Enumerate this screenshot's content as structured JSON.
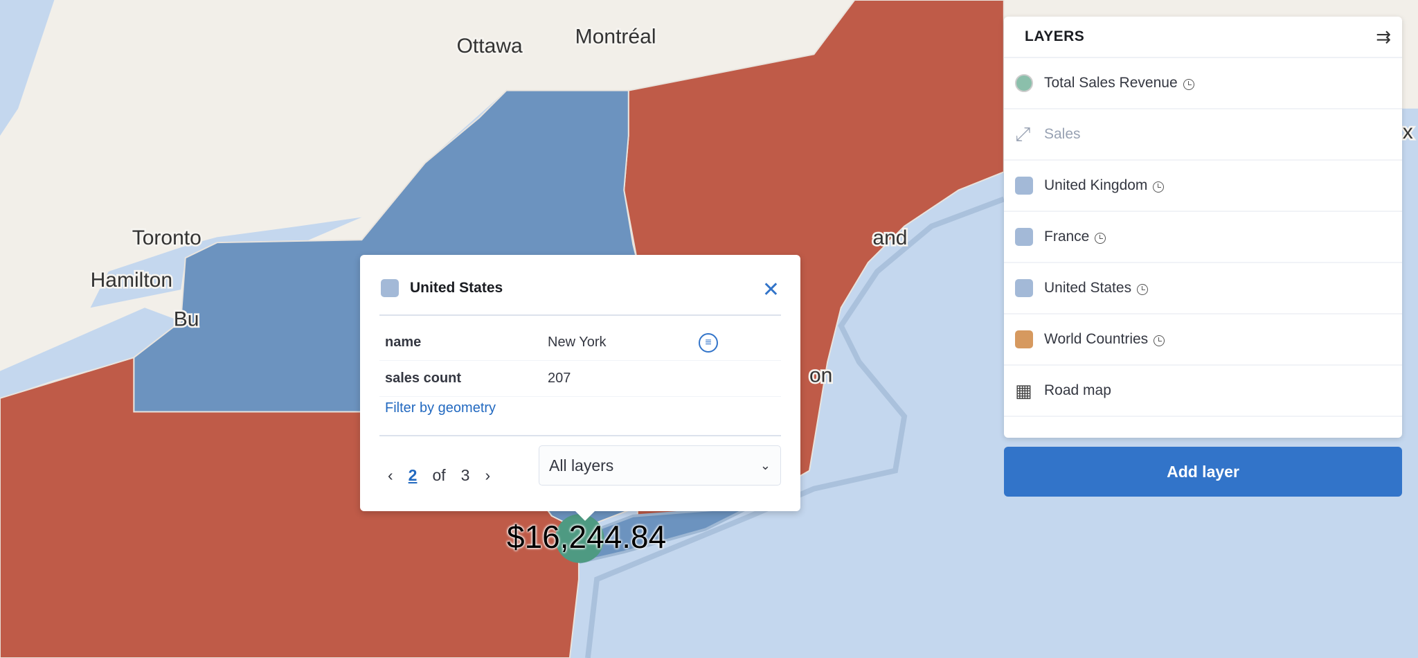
{
  "map": {
    "colors": {
      "land": "#f2efe9",
      "water": "#c4d7ee",
      "new_york": "#6c93bf",
      "other_states": "#bf5b48",
      "point": "#4e9a82"
    },
    "place_labels": [
      "Ottawa",
      "Montréal",
      "Toronto",
      "Hamilton",
      "Bu",
      "and",
      "on",
      "x"
    ],
    "point_label": "$16,244.84"
  },
  "layers_panel": {
    "title": "LAYERS",
    "collapse_icon": "collapse-right-icon",
    "items": [
      {
        "label": "Total Sales Revenue",
        "swatch": "circle",
        "color": "#8bbfab",
        "time_icon": true
      },
      {
        "label": "Sales",
        "swatch": "expand-arrows-icon",
        "muted": true
      },
      {
        "label": "United Kingdom",
        "swatch": "square",
        "color": "#a3b9d7",
        "time_icon": true
      },
      {
        "label": "France",
        "swatch": "square",
        "color": "#a3b9d7",
        "time_icon": true
      },
      {
        "label": "United States",
        "swatch": "square",
        "color": "#a3b9d7",
        "time_icon": true
      },
      {
        "label": "World Countries",
        "swatch": "square",
        "color": "#d6995f",
        "time_icon": true
      },
      {
        "label": "Road map",
        "swatch": "grid-icon"
      }
    ],
    "add_layer": "Add layer"
  },
  "popup": {
    "title": "United States",
    "rows": [
      {
        "key": "name",
        "value": "New York"
      },
      {
        "key": "sales count",
        "value": "207"
      }
    ],
    "filter_link": "Filter by geometry",
    "pager": {
      "current": "2",
      "of": "of",
      "total": "3"
    },
    "layer_select": "All layers"
  }
}
